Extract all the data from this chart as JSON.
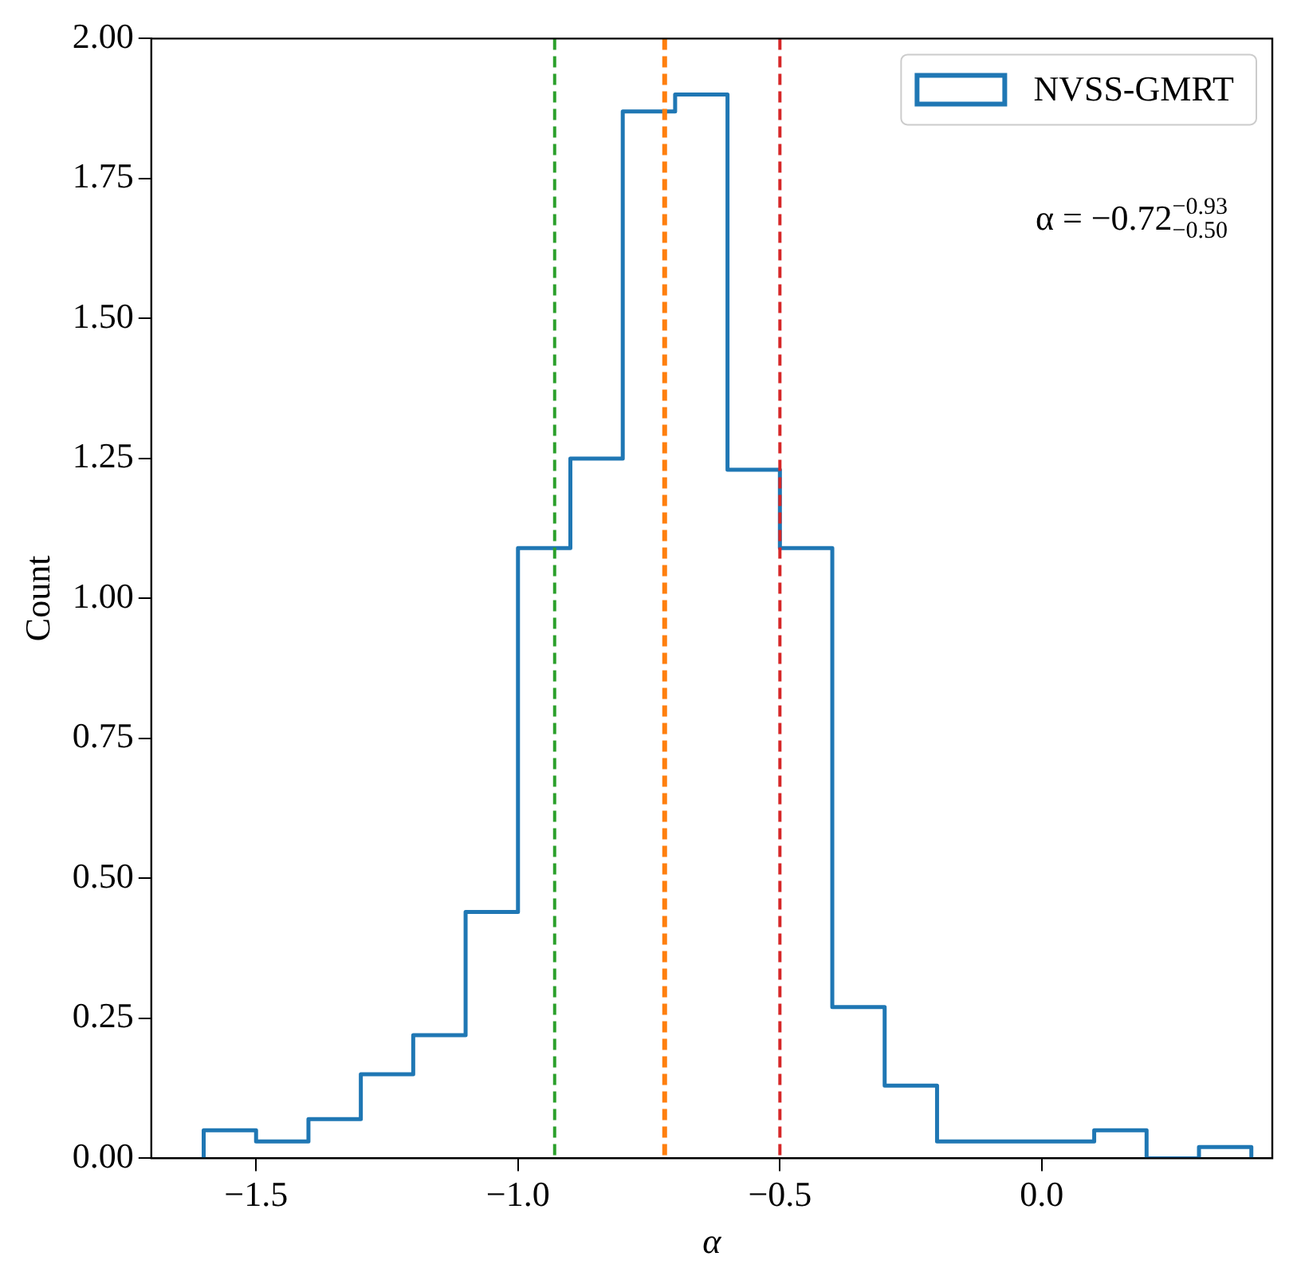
{
  "chart_data": {
    "type": "histogram",
    "xlabel": "α",
    "ylabel": "Count",
    "bins": [
      -1.6,
      -1.5,
      -1.4,
      -1.3,
      -1.2,
      -1.1,
      -1.0,
      -0.9,
      -0.8,
      -0.7,
      -0.6,
      -0.5,
      -0.4,
      -0.3,
      -0.2,
      -0.1,
      0.0,
      0.1,
      0.2,
      0.3,
      0.4
    ],
    "series": [
      {
        "name": "NVSS-GMRT",
        "color": "#1f77b4",
        "values": [
          0.05,
          0.03,
          0.07,
          0.15,
          0.22,
          0.44,
          1.09,
          1.25,
          1.87,
          1.9,
          1.23,
          1.09,
          0.27,
          0.13,
          0.03,
          0.03,
          0.03,
          0.05,
          0.0,
          0.02
        ]
      }
    ],
    "xlim": [
      -1.7,
      0.44
    ],
    "ylim": [
      0,
      2
    ],
    "xticks": [
      {
        "value": -1.5,
        "label": "−1.5"
      },
      {
        "value": -1.0,
        "label": "−1.0"
      },
      {
        "value": -0.5,
        "label": "−0.5"
      },
      {
        "value": 0,
        "label": "0.0"
      }
    ],
    "yticks": [
      {
        "value": 0,
        "label": "0.00"
      },
      {
        "value": 0.25,
        "label": "0.25"
      },
      {
        "value": 0.5,
        "label": "0.50"
      },
      {
        "value": 0.75,
        "label": "0.75"
      },
      {
        "value": 1,
        "label": "1.00"
      },
      {
        "value": 1.25,
        "label": "1.25"
      },
      {
        "value": 1.5,
        "label": "1.50"
      },
      {
        "value": 1.75,
        "label": "1.75"
      },
      {
        "value": 2,
        "label": "2.00"
      }
    ],
    "ref_lines": [
      {
        "axis": "x",
        "value": -0.93,
        "color": "#2ca02c",
        "line_style": "dashed"
      },
      {
        "axis": "x",
        "value": -0.72,
        "color": "#ff7f0e",
        "line_style": "dashed"
      },
      {
        "axis": "x",
        "value": -0.5,
        "color": "#d62728",
        "line_style": "dashed"
      }
    ],
    "annotations": [
      "α = −0.72$^{−0.93}$$_{−0.50}$"
    ],
    "legend": "top right",
    "grid": false
  }
}
